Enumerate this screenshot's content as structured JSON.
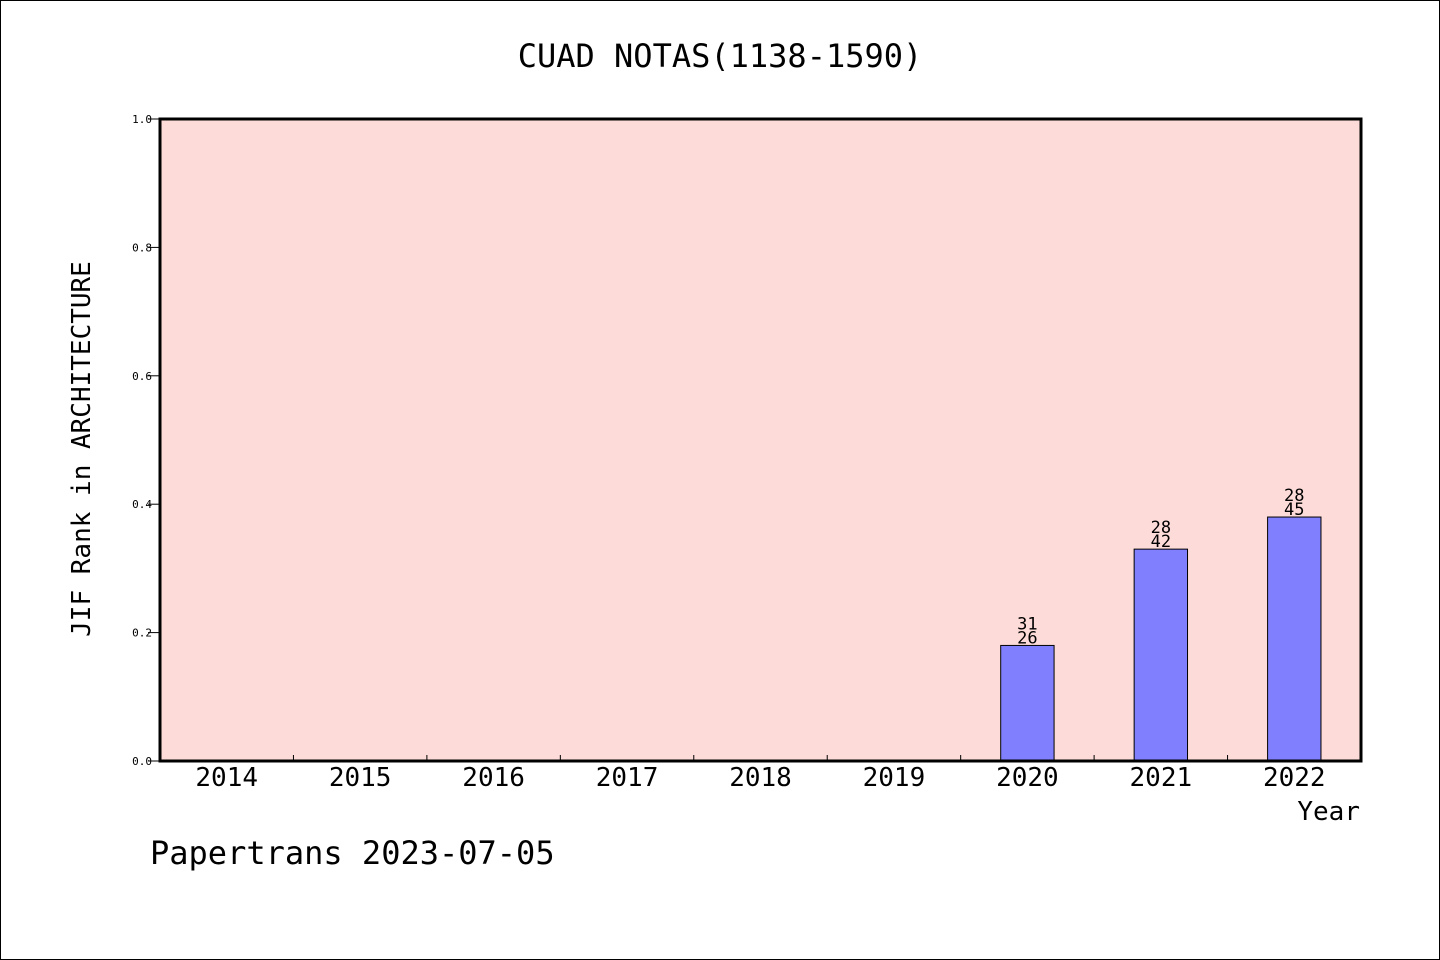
{
  "chart_data": {
    "type": "bar",
    "title": "CUAD NOTAS(1138-1590)",
    "xlabel": "Year",
    "ylabel": "JIF Rank in ARCHITECTURE",
    "categories": [
      "2014",
      "2015",
      "2016",
      "2017",
      "2018",
      "2019",
      "2020",
      "2021",
      "2022"
    ],
    "values": [
      null,
      null,
      null,
      null,
      null,
      null,
      0.18,
      0.33,
      0.38
    ],
    "bar_labels": [
      null,
      null,
      null,
      null,
      null,
      null,
      {
        "top": "31",
        "bottom": "26"
      },
      {
        "top": "28",
        "bottom": "42"
      },
      {
        "top": "28",
        "bottom": "45"
      }
    ],
    "ylim": [
      0,
      1.0
    ],
    "yticks": [
      "0.0",
      "0.2",
      "0.4",
      "0.6",
      "0.8",
      "1.0"
    ],
    "grid": false,
    "colors": {
      "plot_background": "#fddbd8",
      "bar_fill": "#8080ff",
      "bar_stroke": "#000000"
    }
  },
  "footer": {
    "watermark": "Papertrans 2023-07-05"
  }
}
